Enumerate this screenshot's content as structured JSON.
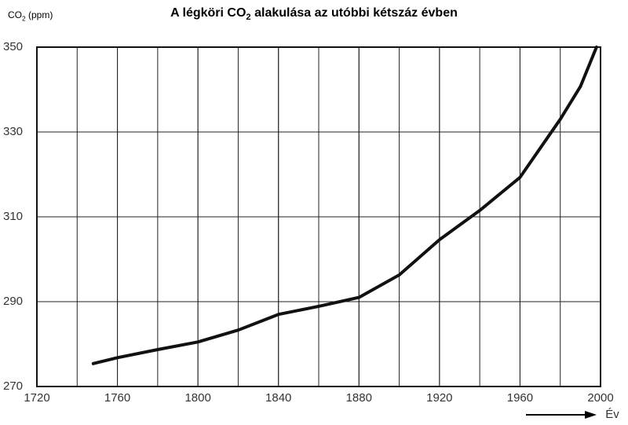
{
  "chart_data": {
    "type": "line",
    "title": [
      "A légköri CO",
      "2",
      " alakulása az utóbbi kétszáz évben"
    ],
    "y_label": [
      "CO",
      "2",
      " (ppm)"
    ],
    "x_label": "Év",
    "x": [
      1748,
      1760,
      1780,
      1800,
      1820,
      1840,
      1860,
      1880,
      1900,
      1920,
      1940,
      1960,
      1980,
      1990,
      1998
    ],
    "series": [
      {
        "color": "#111111",
        "values": [
          275.4,
          276.8,
          278.7,
          280.5,
          283.3,
          287,
          288.9,
          291,
          296.3,
          304.6,
          311.5,
          319.3,
          333,
          340.7,
          350
        ]
      }
    ],
    "xlim": [
      1720,
      2000
    ],
    "ylim": [
      270,
      350
    ],
    "xticks": [
      1720,
      1760,
      1800,
      1840,
      1880,
      1920,
      1960,
      2000
    ],
    "x_grid": [
      1740,
      1760,
      1780,
      1800,
      1820,
      1840,
      1860,
      1880,
      1900,
      1920,
      1940,
      1960,
      1980
    ],
    "yticks": [
      270,
      290,
      310,
      330,
      350
    ],
    "grid": true
  }
}
